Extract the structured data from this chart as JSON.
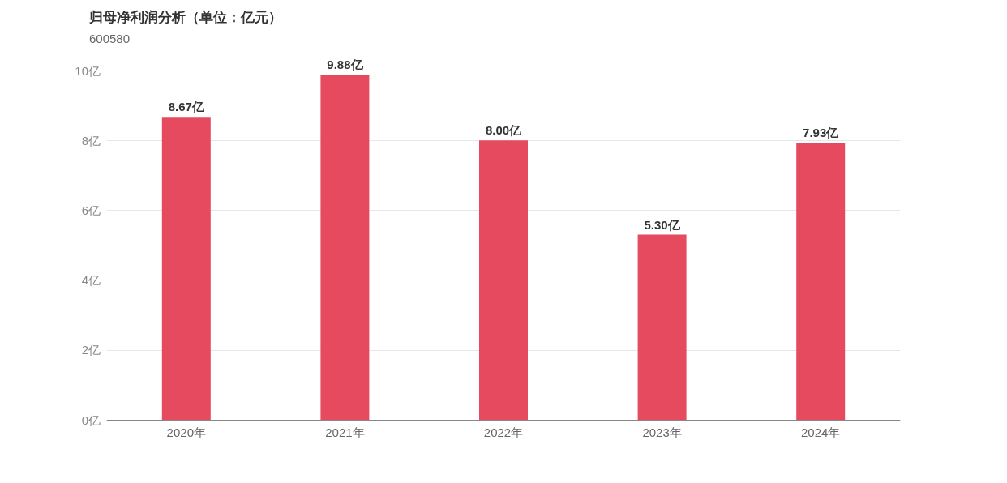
{
  "chart_data": {
    "type": "bar",
    "title": "归母净利润分析（单位：亿元）",
    "subtitle": "600580",
    "categories": [
      "2020年",
      "2021年",
      "2022年",
      "2023年",
      "2024年"
    ],
    "values": [
      8.67,
      9.88,
      8.0,
      5.3,
      7.93
    ],
    "value_labels": [
      "8.67亿",
      "9.88亿",
      "8.00亿",
      "5.30亿",
      "7.93亿"
    ],
    "color": "#e64a5f",
    "ylim": [
      0,
      10
    ],
    "yticks": [
      {
        "value": 0,
        "label": "0亿"
      },
      {
        "value": 2,
        "label": "2亿"
      },
      {
        "value": 4,
        "label": "4亿"
      },
      {
        "value": 6,
        "label": "6亿"
      },
      {
        "value": 8,
        "label": "8亿"
      },
      {
        "value": 10,
        "label": "10亿"
      }
    ],
    "grid": "y"
  }
}
